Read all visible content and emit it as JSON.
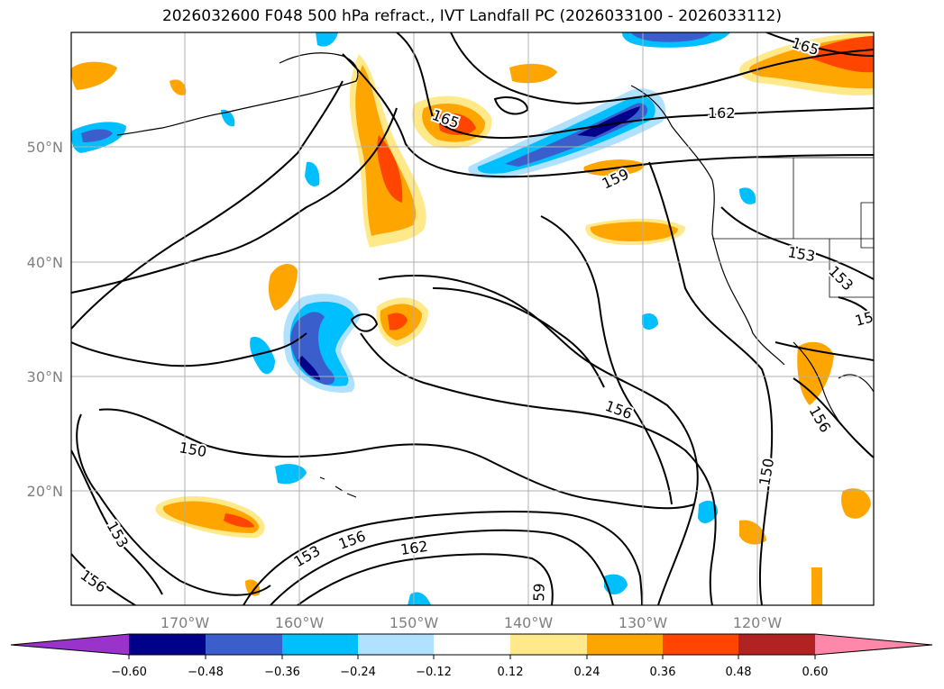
{
  "title": "2026032600 F048 500 hPa refract., IVT Landfall PC (2026033100 - 2026033112)",
  "map": {
    "lat_labels": [
      "50°N",
      "40°N",
      "30°N",
      "20°N"
    ],
    "lon_labels": [
      "170°W",
      "160°W",
      "150°W",
      "140°W",
      "130°W",
      "120°W"
    ],
    "contour_labels": [
      "165",
      "165",
      "162",
      "159",
      "153",
      "153",
      "15",
      "156",
      "156",
      "150",
      "150",
      "153",
      "156",
      "153",
      "156",
      "162",
      "59"
    ]
  },
  "colorbar": {
    "colors": [
      "#9933cc",
      "#00008b",
      "#3a5fcd",
      "#00bfff",
      "#b0e2ff",
      "#ffffff",
      "#ffe98a",
      "#ffa500",
      "#ff4500",
      "#b22222",
      "#ff88aa"
    ],
    "tick_labels": [
      "−0.60",
      "−0.48",
      "−0.36",
      "−0.24",
      "−0.12",
      "0.12",
      "0.24",
      "0.36",
      "0.48",
      "0.60"
    ]
  }
}
